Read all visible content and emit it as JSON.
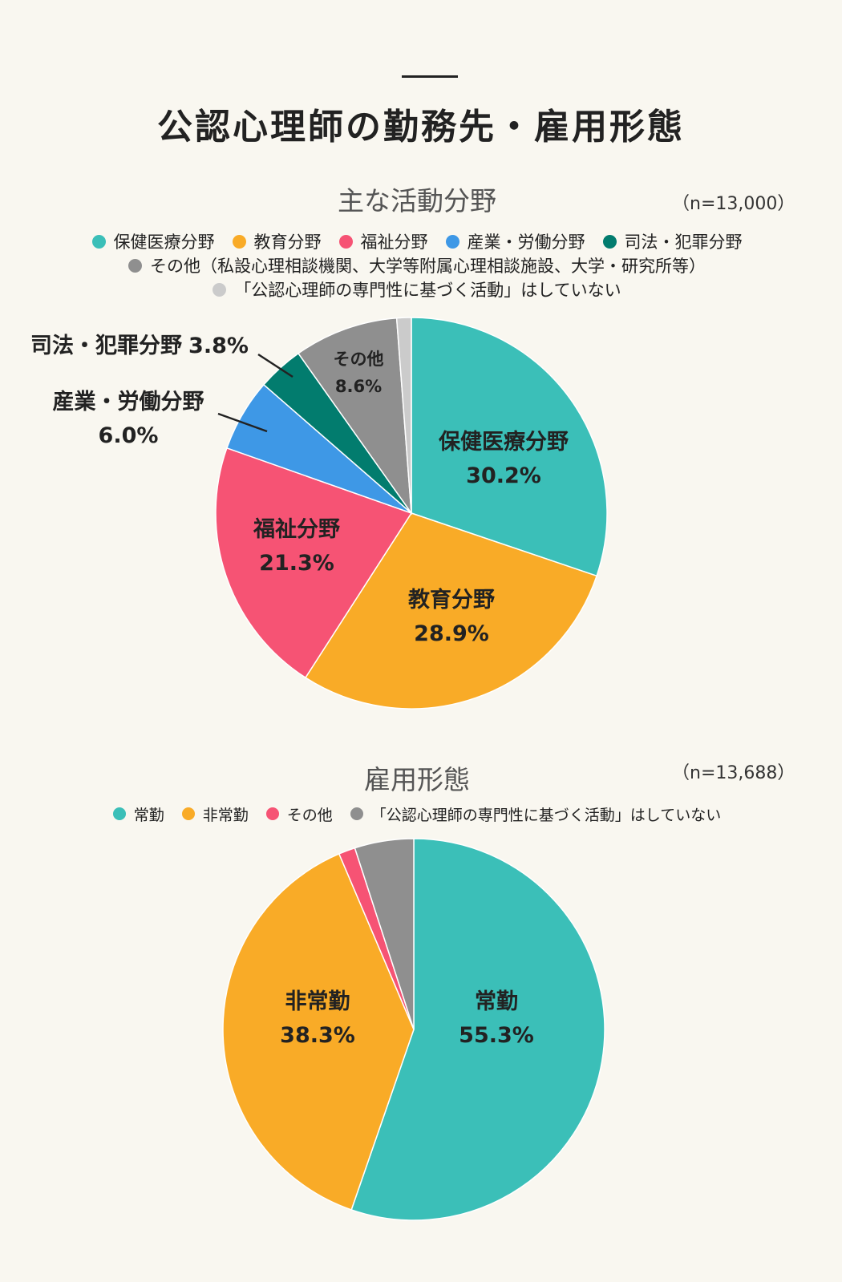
{
  "main_title": "公認心理師の勤務先・雇用形態",
  "chart_data": [
    {
      "type": "pie",
      "title": "主な活動分野",
      "n_label": "（n=13,000）",
      "series": [
        {
          "name": "保健医療分野",
          "value": 30.2,
          "color": "#3bbfb8",
          "label_name": "保健医療分野",
          "label_value": "30.2%"
        },
        {
          "name": "教育分野",
          "value": 28.9,
          "color": "#f9ab27",
          "label_name": "教育分野",
          "label_value": "28.9%"
        },
        {
          "name": "福祉分野",
          "value": 21.3,
          "color": "#f65374",
          "label_name": "福祉分野",
          "label_value": "21.3%"
        },
        {
          "name": "産業・労働分野",
          "value": 6.0,
          "color": "#3e98e6",
          "label_name": "産業・労働分野",
          "label_value": "6.0%"
        },
        {
          "name": "司法・犯罪分野",
          "value": 3.8,
          "color": "#027c6e",
          "label_name": "司法・犯罪分野",
          "label_value": "3.8%"
        },
        {
          "name": "その他（私設心理相談機関、大学等附属心理相談施設、大学・研究所等）",
          "value": 8.6,
          "color": "#8f8f8f",
          "label_name": "その他",
          "label_value": "8.6%"
        },
        {
          "name": "「公認心理師の専門性に基づく活動」はしていない",
          "value": 1.2,
          "color": "#cbcbcb",
          "label_name": "",
          "label_value": ""
        }
      ]
    },
    {
      "type": "pie",
      "title": "雇用形態",
      "n_label": "（n=13,688）",
      "series": [
        {
          "name": "常勤",
          "value": 55.3,
          "color": "#3bbfb8",
          "label_name": "常勤",
          "label_value": "55.3%"
        },
        {
          "name": "非常勤",
          "value": 38.3,
          "color": "#f9ab27",
          "label_name": "非常勤",
          "label_value": "38.3%"
        },
        {
          "name": "その他",
          "value": 1.4,
          "color": "#f65374",
          "label_name": "",
          "label_value": ""
        },
        {
          "name": "「公認心理師の専門性に基づく活動」はしていない",
          "value": 5.0,
          "color": "#8f8f8f",
          "label_name": "",
          "label_value": ""
        }
      ]
    }
  ]
}
